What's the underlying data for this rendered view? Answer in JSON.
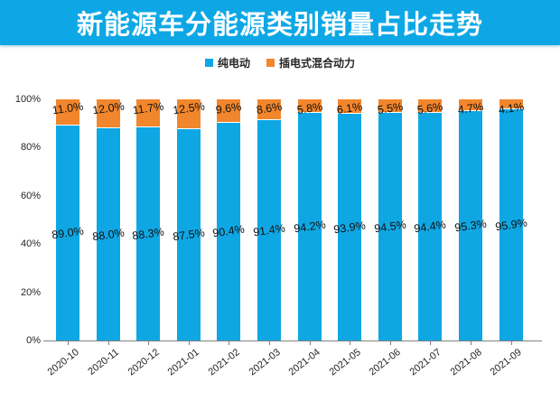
{
  "banner": {
    "title": "新能源车分能源类别销量占比走势",
    "bg": "#0DA7E6",
    "text_color": "#ffffff"
  },
  "legend": {
    "items": [
      {
        "label": "纯电动",
        "color": "#0FA7E3"
      },
      {
        "label": "插电式混合动力",
        "color": "#F2862C"
      }
    ]
  },
  "chart_data": {
    "type": "bar",
    "stacked": true,
    "title": "新能源车分能源类别销量占比走势",
    "categories": [
      "2020-10",
      "2020-11",
      "2020-12",
      "2021-01",
      "2021-02",
      "2021-03",
      "2021-04",
      "2021-05",
      "2021-06",
      "2021-07",
      "2021-08",
      "2021-09"
    ],
    "series": [
      {
        "name": "纯电动",
        "color": "#0FA7E3",
        "values": [
          89.0,
          88.0,
          88.3,
          87.5,
          90.4,
          91.4,
          94.2,
          93.9,
          94.5,
          94.4,
          95.3,
          95.9
        ]
      },
      {
        "name": "插电式混合动力",
        "color": "#F2862C",
        "values": [
          11.0,
          12.0,
          11.7,
          12.5,
          9.6,
          8.6,
          5.8,
          6.1,
          5.5,
          5.6,
          4.7,
          4.1
        ]
      }
    ],
    "value_suffix": "%",
    "y_ticks": [
      {
        "label": "0%",
        "value": 0
      },
      {
        "label": "20%",
        "value": 20
      },
      {
        "label": "40%",
        "value": 40
      },
      {
        "label": "60%",
        "value": 60
      },
      {
        "label": "80%",
        "value": 80
      },
      {
        "label": "100%",
        "value": 100
      }
    ],
    "ylim": [
      0,
      107
    ],
    "xlabel": "",
    "ylabel": "",
    "grid": false,
    "legend_position": "top",
    "axis_color": "#808080"
  }
}
